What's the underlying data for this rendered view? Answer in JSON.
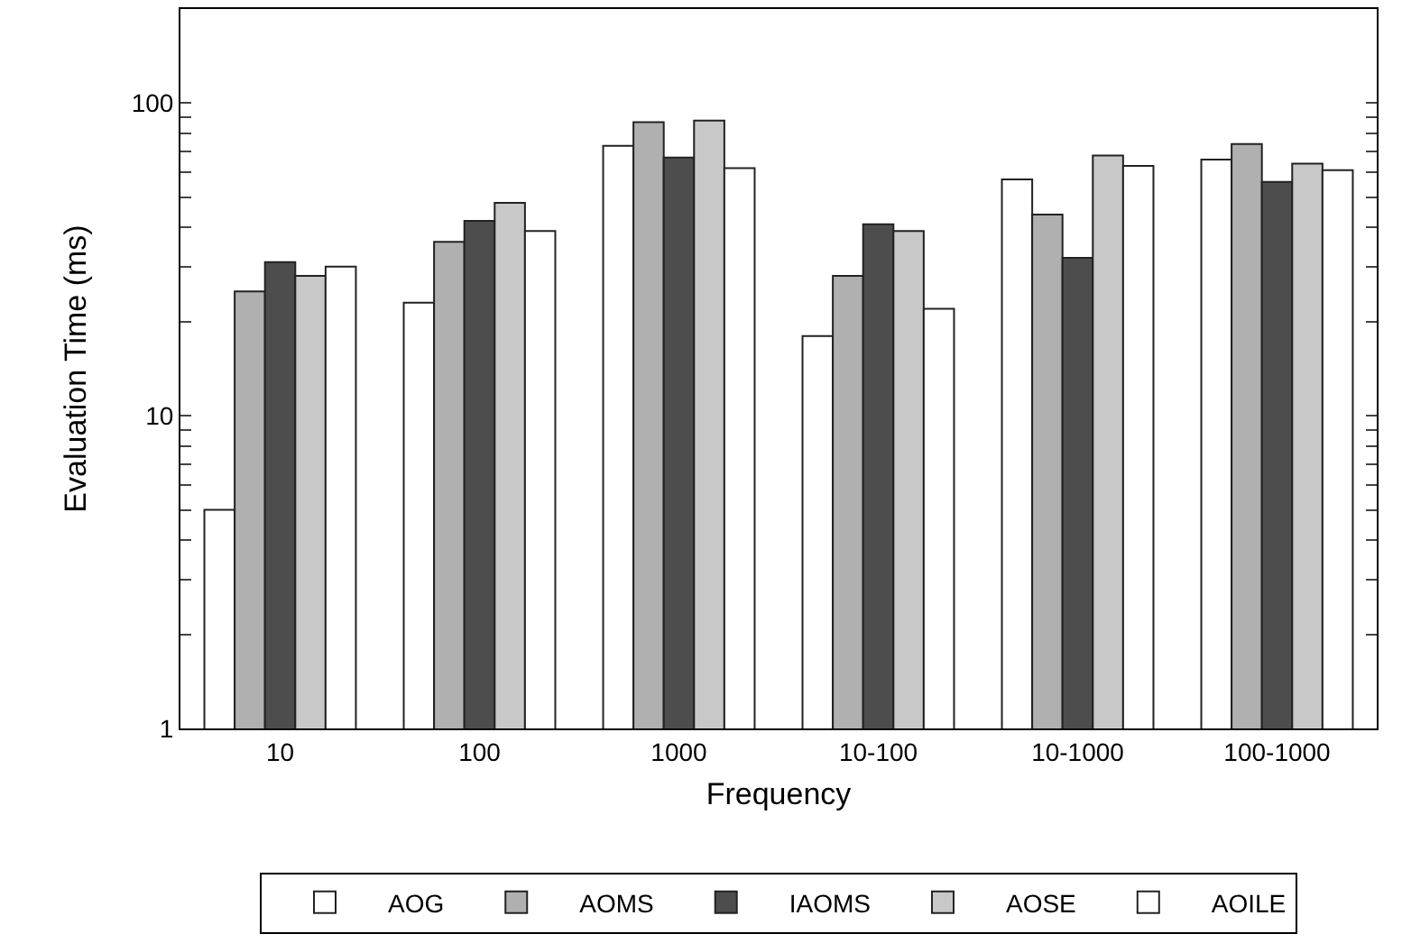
{
  "chart_data": {
    "type": "bar",
    "xlabel": "Frequency",
    "ylabel": "Evaluation Time (ms)",
    "categories": [
      "10",
      "100",
      "1000",
      "10-100",
      "10-1000",
      "100-1000"
    ],
    "series": [
      {
        "name": "AOG",
        "color": "#ffffff",
        "values": [
          5,
          23,
          73,
          18,
          57,
          66
        ]
      },
      {
        "name": "AOMS",
        "color": "#b0b0b0",
        "values": [
          25,
          36,
          87,
          28,
          44,
          74
        ]
      },
      {
        "name": "IAOMS",
        "color": "#4d4d4d",
        "values": [
          31,
          42,
          67,
          41,
          32,
          56
        ]
      },
      {
        "name": "AOSE",
        "color": "#c8c8c8",
        "values": [
          28,
          48,
          88,
          39,
          68,
          64
        ]
      },
      {
        "name": "AOILE",
        "color": "#ffffff",
        "values": [
          30,
          39,
          62,
          22,
          63,
          61
        ]
      }
    ],
    "log": "y",
    "ylim": [
      1,
      200
    ],
    "yticks": [
      1,
      {
        "value": 2,
        "label": null
      },
      {
        "value": 3,
        "label": null
      },
      {
        "value": 4,
        "label": null
      },
      {
        "value": 5,
        "label": null
      },
      {
        "value": 6,
        "label": null
      },
      {
        "value": 7,
        "label": null
      },
      {
        "value": 8,
        "label": null
      },
      {
        "value": 9,
        "label": null
      },
      10,
      {
        "value": 20,
        "label": null
      },
      {
        "value": 30,
        "label": null
      },
      {
        "value": 40,
        "label": null
      },
      {
        "value": 50,
        "label": null
      },
      {
        "value": 60,
        "label": null
      },
      {
        "value": 70,
        "label": null
      },
      {
        "value": 80,
        "label": null
      },
      {
        "value": 90,
        "label": null
      },
      100,
      {
        "value": 200,
        "label": null
      }
    ],
    "grid": false,
    "legend": "bottom"
  }
}
